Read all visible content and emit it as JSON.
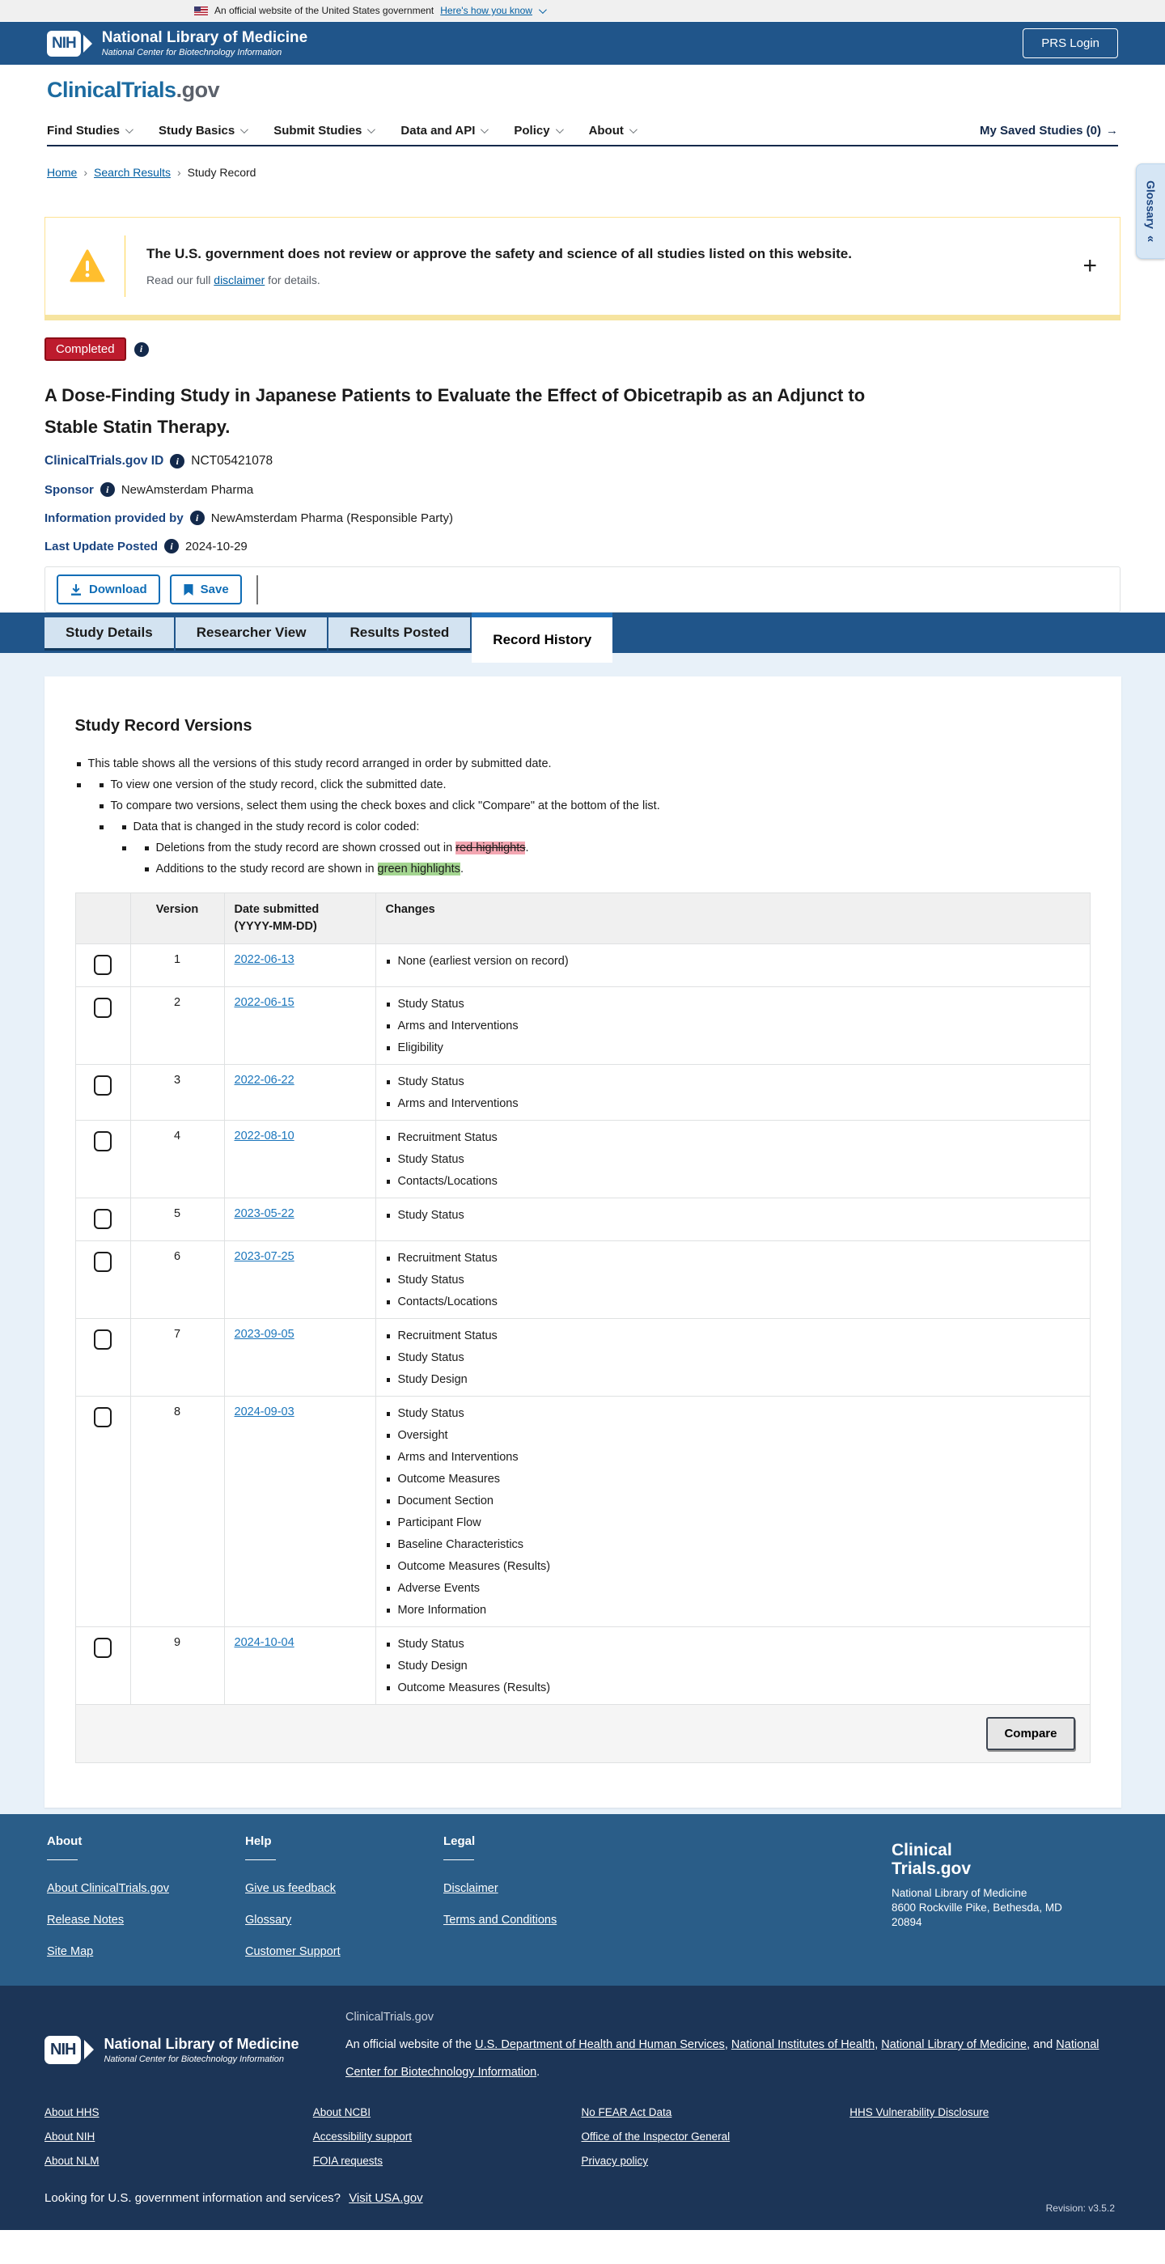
{
  "banner": {
    "official_text": "An official website of the United States government",
    "link_label": "Here's how you know"
  },
  "nih_header": {
    "logo_acronym": "NIH",
    "org_name": "National Library of Medicine",
    "org_sub": "National Center for Biotechnology Information",
    "login_label": "PRS Login"
  },
  "site_logo": {
    "primary": "ClinicalTrials",
    "suffix": ".gov"
  },
  "nav": {
    "items": [
      {
        "label": "Find Studies"
      },
      {
        "label": "Study Basics"
      },
      {
        "label": "Submit Studies"
      },
      {
        "label": "Data and API"
      },
      {
        "label": "Policy"
      },
      {
        "label": "About"
      }
    ],
    "saved_label": "My Saved Studies (0)",
    "saved_arrow": "→"
  },
  "breadcrumb": {
    "home": "Home",
    "search": "Search Results",
    "current": "Study Record"
  },
  "glossary": {
    "label": "Glossary",
    "collapse_icon": "«"
  },
  "warning": {
    "title": "The U.S. government does not review or approve the safety and science of all studies listed on this website.",
    "body_prefix": "Read our full ",
    "link": "disclaimer",
    "body_suffix": " for details.",
    "expand_icon": "+"
  },
  "study": {
    "status": "Completed",
    "title": "A Dose-Finding Study in Japanese Patients to Evaluate the Effect of Obicetrapib as an Adjunct to Stable Statin Therapy.",
    "id_label": "ClinicalTrials.gov ID",
    "id_value": "NCT05421078",
    "sponsor_label": "Sponsor",
    "sponsor_value": "NewAmsterdam Pharma",
    "info_label": "Information provided by",
    "info_value": "NewAmsterdam Pharma (Responsible Party)",
    "updated_label": "Last Update Posted",
    "updated_value": "2024-10-29"
  },
  "actions": {
    "download": "Download",
    "save": "Save"
  },
  "tabs": [
    {
      "label": "Study Details",
      "active": false
    },
    {
      "label": "Researcher View",
      "active": false
    },
    {
      "label": "Results Posted",
      "active": false
    },
    {
      "label": "Record History",
      "active": true
    }
  ],
  "versions": {
    "heading": "Study Record Versions",
    "intro": {
      "b1": "This table shows all the versions of this study record arranged in order by submitted date.",
      "b2": "To view one version of the study record, click the submitted date.",
      "b3": "To compare two versions, select them using the check boxes and click \"Compare\" at the bottom of the list.",
      "b4": "Data that is changed in the study record is color coded:",
      "b5_prefix": "Deletions from the study record are shown crossed out in ",
      "b5_highlight": "red highlights",
      "b5_suffix": ".",
      "b6_prefix": "Additions to the study record are shown in ",
      "b6_highlight": "green highlights",
      "b6_suffix": "."
    },
    "table": {
      "col_version": "Version",
      "col_date_line1": "Date submitted",
      "col_date_line2": "(YYYY-MM-DD)",
      "col_changes": "Changes",
      "rows": [
        {
          "version": "1",
          "date": "2022-06-13",
          "changes": [
            "None (earliest version on record)"
          ]
        },
        {
          "version": "2",
          "date": "2022-06-15",
          "changes": [
            "Study Status",
            "Arms and Interventions",
            "Eligibility"
          ]
        },
        {
          "version": "3",
          "date": "2022-06-22",
          "changes": [
            "Study Status",
            "Arms and Interventions"
          ]
        },
        {
          "version": "4",
          "date": "2022-08-10",
          "changes": [
            "Recruitment Status",
            "Study Status",
            "Contacts/Locations"
          ]
        },
        {
          "version": "5",
          "date": "2023-05-22",
          "changes": [
            "Study Status"
          ]
        },
        {
          "version": "6",
          "date": "2023-07-25",
          "changes": [
            "Recruitment Status",
            "Study Status",
            "Contacts/Locations"
          ]
        },
        {
          "version": "7",
          "date": "2023-09-05",
          "changes": [
            "Recruitment Status",
            "Study Status",
            "Study Design"
          ]
        },
        {
          "version": "8",
          "date": "2024-09-03",
          "changes": [
            "Study Status",
            "Oversight",
            "Arms and Interventions",
            "Outcome Measures",
            "Document Section",
            "Participant Flow",
            "Baseline Characteristics",
            "Outcome Measures (Results)",
            "Adverse Events",
            "More Information"
          ]
        },
        {
          "version": "9",
          "date": "2024-10-04",
          "changes": [
            "Study Status",
            "Study Design",
            "Outcome Measures (Results)"
          ]
        }
      ],
      "compare_label": "Compare"
    }
  },
  "mid_footer": {
    "columns": [
      {
        "heading": "About",
        "links": [
          "About ClinicalTrials.gov",
          "Release Notes",
          "Site Map"
        ]
      },
      {
        "heading": "Help",
        "links": [
          "Give us feedback",
          "Glossary",
          "Customer Support"
        ]
      },
      {
        "heading": "Legal",
        "links": [
          "Disclaimer",
          "Terms and Conditions"
        ]
      }
    ],
    "logo_line1": "Clinical",
    "logo_line2": "Trials.gov",
    "address_lines": [
      "National Library of Medicine",
      "8600 Rockville Pike, Bethesda, MD",
      "20894"
    ]
  },
  "bottom_footer": {
    "nlm": {
      "logo_acronym": "NIH",
      "org_name": "National Library of Medicine",
      "org_sub": "National Center for Biotechnology Information"
    },
    "site_name": "ClinicalTrials.gov",
    "official_segments": [
      {
        "text": "An official website of the ",
        "link": false
      },
      {
        "text": "U.S. Department of Health and Human Services",
        "link": true
      },
      {
        "text": ", ",
        "link": false
      },
      {
        "text": "National Institutes of Health",
        "link": true
      },
      {
        "text": ", ",
        "link": false
      },
      {
        "text": "National Library of Medicine",
        "link": true
      },
      {
        "text": ", and ",
        "link": false
      },
      {
        "text": "National Center for Biotechnology Information",
        "link": true
      },
      {
        "text": ".",
        "link": false
      }
    ],
    "link_columns": [
      [
        "About HHS",
        "About NIH",
        "About NLM"
      ],
      [
        "About NCBI",
        "Accessibility support",
        "FOIA requests"
      ],
      [
        "No FEAR Act Data",
        "Office of the Inspector General",
        "Privacy policy"
      ],
      [
        "HHS Vulnerability Disclosure"
      ]
    ],
    "usa_prompt": "Looking for U.S. government information and services?",
    "usa_link": "Visit USA.gov",
    "revision": "Revision: v3.5.2"
  },
  "colors": {
    "header_blue": "#20558a",
    "content_light_blue": "#e8f1f9",
    "link_blue": "#005ea2",
    "date_link_blue": "#1a75bb",
    "badge_red": "#bd1b2d",
    "warning_amber": "#ffbe2e",
    "highlight_red": "#f3a6b2",
    "highlight_green": "#a3d590",
    "mid_footer_blue": "#2a5d88",
    "bottom_footer_navy": "#1c3557"
  }
}
